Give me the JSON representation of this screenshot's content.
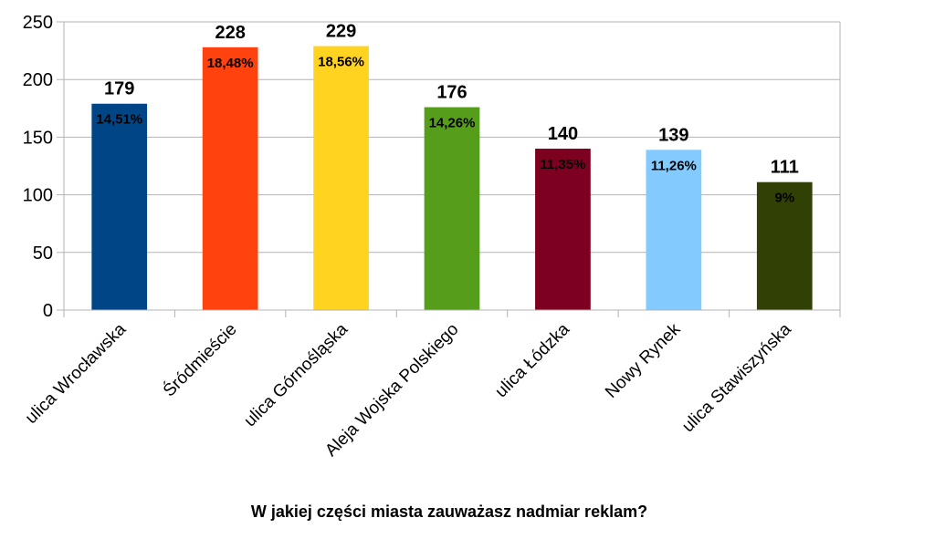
{
  "chart_data": {
    "type": "bar",
    "title": "W jakiej części miasta zauważasz nadmiar reklam?",
    "xlabel": "",
    "ylabel": "",
    "ylim": [
      0,
      250
    ],
    "yticks": [
      0,
      50,
      100,
      150,
      200,
      250
    ],
    "ytick_labels": [
      "0",
      "50",
      "100",
      "150",
      "200",
      "250"
    ],
    "grid": true,
    "legend": "none",
    "categories": [
      "ulica Wrocławska",
      "Śródmieście",
      "ulica Górnośląska",
      "Aleja Wojska Polskiego",
      "ulica Łódzka",
      "Nowy Rynek",
      "ulica Stawiszyńska"
    ],
    "values": [
      179,
      228,
      229,
      176,
      140,
      139,
      111
    ],
    "value_labels": [
      "179",
      "228",
      "229",
      "176",
      "140",
      "139",
      "111"
    ],
    "percent_labels": [
      "14,51%",
      "18,48%",
      "18,56%",
      "14,26%",
      "11,35%",
      "11,26%",
      "9%"
    ],
    "colors": [
      "#004586",
      "#ff420e",
      "#ffd320",
      "#579d1c",
      "#7e0021",
      "#83caff",
      "#314004"
    ]
  }
}
